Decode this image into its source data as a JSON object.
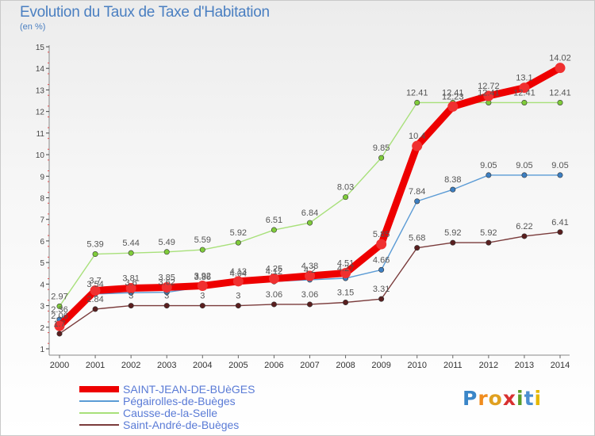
{
  "title": "Evolution du Taux de Taxe d'Habitation",
  "unit_label": "(en %)",
  "logo_text": "Proxiti",
  "chart_data": {
    "type": "line",
    "title": "Evolution du Taux de Taxe d'Habitation",
    "ylabel": "(en %)",
    "xlabel": "",
    "x": [
      2000,
      2001,
      2002,
      2003,
      2004,
      2005,
      2006,
      2007,
      2008,
      2009,
      2010,
      2011,
      2012,
      2013,
      2014
    ],
    "ylim": [
      1,
      15
    ],
    "yticks": [
      1,
      2,
      3,
      4,
      5,
      6,
      7,
      8,
      9,
      10,
      11,
      12,
      13,
      14,
      15
    ],
    "legend_position": "bottom-left",
    "series": [
      {
        "name": "SAINT-JEAN-DE-BUèGES",
        "color": "#ee0000",
        "marker_fill": "#f03030",
        "emphasis": true,
        "values": [
          2.06,
          3.7,
          3.81,
          3.85,
          3.92,
          4.13,
          4.25,
          4.38,
          4.51,
          5.85,
          10.4,
          12.23,
          12.72,
          13.1,
          14.02
        ],
        "labels": [
          "2.06",
          "3.7",
          "3.81",
          "3.85",
          "3.92",
          "4.13",
          "4.25",
          "4.38",
          "4.51",
          "5.85",
          "10.4",
          "12.23",
          "12.72",
          "13.1",
          "14.02"
        ]
      },
      {
        "name": "Pégairolles-de-Buèges",
        "color": "#5b9bd5",
        "marker_fill": "#3d7fc2",
        "emphasis": false,
        "values": [
          2.36,
          3.54,
          3.6,
          3.62,
          3.86,
          4.04,
          4.12,
          4.2,
          4.27,
          4.66,
          7.84,
          8.38,
          9.05,
          9.05,
          9.05
        ],
        "labels": [
          "2.36",
          "3.54",
          "3.6",
          "3.62",
          "3.86",
          "4.04",
          "4.12",
          "4.2",
          "4.27",
          "4.66",
          "7.84",
          "8.38",
          "9.05",
          "9.05",
          "9.05"
        ]
      },
      {
        "name": "Causse-de-la-Selle",
        "color": "#a8e07a",
        "marker_fill": "#7fcc3a",
        "emphasis": false,
        "values": [
          2.97,
          5.39,
          5.44,
          5.49,
          5.59,
          5.92,
          6.51,
          6.84,
          8.03,
          9.85,
          12.41,
          12.41,
          12.41,
          12.41,
          12.41
        ],
        "labels": [
          "2.97",
          "5.39",
          "5.44",
          "5.49",
          "5.59",
          "5.92",
          "6.51",
          "6.84",
          "8.03",
          "9.85",
          "12.41",
          "12.41",
          "12.41",
          "12.41",
          "12.41"
        ]
      },
      {
        "name": "Saint-André-de-Buèges",
        "color": "#7a3b3b",
        "marker_fill": "#5a1f1f",
        "emphasis": false,
        "values": [
          1.7,
          2.84,
          3,
          3,
          3,
          3,
          3.06,
          3.06,
          3.15,
          3.31,
          5.68,
          5.92,
          5.92,
          6.22,
          6.41
        ],
        "labels": [
          "1.7",
          "2.84",
          "3",
          "3",
          "3",
          "3",
          "3.06",
          "3.06",
          "3.15",
          "3.31",
          "5.68",
          "5.92",
          "5.92",
          "6.22",
          "6.41"
        ]
      }
    ]
  }
}
